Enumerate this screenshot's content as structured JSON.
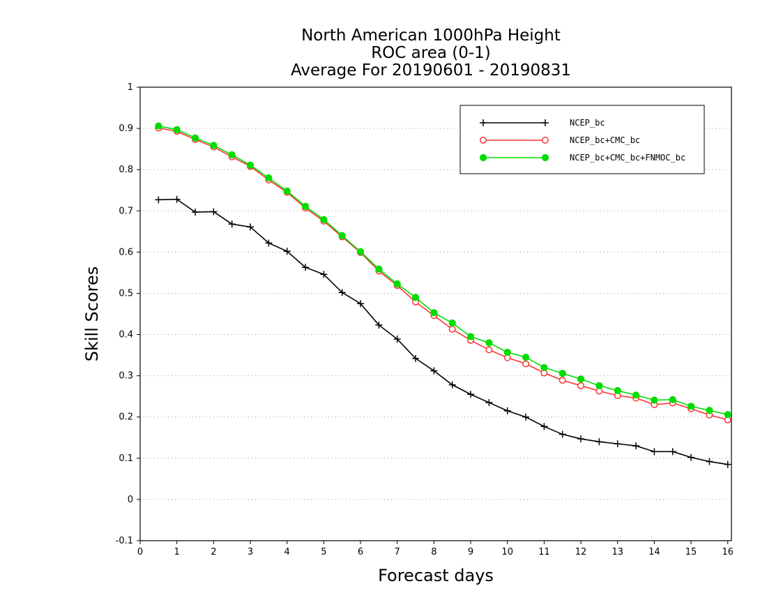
{
  "chart_data": {
    "type": "line",
    "title_lines": [
      "North American 1000hPa Height",
      "ROC area (0-1)",
      "Average For 20190601 - 20190831"
    ],
    "xlabel": "Forecast days",
    "ylabel": "Skill Scores",
    "xlim": [
      0,
      16.1
    ],
    "ylim": [
      -0.1,
      1
    ],
    "x_ticks": [
      0,
      1,
      2,
      3,
      4,
      5,
      6,
      7,
      8,
      9,
      10,
      11,
      12,
      13,
      14,
      15,
      16
    ],
    "x_tick_labels": [
      "0",
      "1",
      "2",
      "3",
      "4",
      "5",
      "6",
      "7",
      "8",
      "9",
      "10",
      "11",
      "12",
      "13",
      "14",
      "15",
      "16"
    ],
    "y_ticks": [
      -0.1,
      0,
      0.1,
      0.2,
      0.3,
      0.4,
      0.5,
      0.6,
      0.7,
      0.8,
      0.9,
      1
    ],
    "y_tick_labels": [
      "-0.1",
      "0",
      "0.1",
      "0.2",
      "0.3",
      "0.4",
      "0.5",
      "0.6",
      "0.7",
      "0.8",
      "0.9",
      "1"
    ],
    "grid": "horizontal dotted",
    "legend_position": "top-right",
    "x": [
      0.5,
      1.0,
      1.5,
      2.0,
      2.5,
      3.0,
      3.5,
      4.0,
      4.5,
      5.0,
      5.5,
      6.0,
      6.5,
      7.0,
      7.5,
      8.0,
      8.5,
      9.0,
      9.5,
      10.0,
      10.5,
      11.0,
      11.5,
      12.0,
      12.5,
      13.0,
      13.5,
      14.0,
      14.5,
      15.0,
      15.5,
      16.0
    ],
    "series": [
      {
        "name": "NCEP_bc",
        "color": "#000000",
        "marker": "plus",
        "values": [
          0.727,
          0.728,
          0.697,
          0.698,
          0.668,
          0.661,
          0.622,
          0.602,
          0.563,
          0.546,
          0.502,
          0.475,
          0.423,
          0.389,
          0.342,
          0.312,
          0.278,
          0.255,
          0.235,
          0.215,
          0.2,
          0.177,
          0.158,
          0.147,
          0.14,
          0.135,
          0.13,
          0.116,
          0.116,
          0.102,
          0.092,
          0.085
        ]
      },
      {
        "name": "NCEP_bc+CMC_bc",
        "color": "#ff3333",
        "marker": "open-circle",
        "values": [
          0.901,
          0.893,
          0.873,
          0.855,
          0.831,
          0.808,
          0.775,
          0.745,
          0.707,
          0.675,
          0.637,
          0.599,
          0.554,
          0.519,
          0.479,
          0.446,
          0.413,
          0.386,
          0.363,
          0.344,
          0.329,
          0.307,
          0.289,
          0.276,
          0.263,
          0.252,
          0.246,
          0.23,
          0.234,
          0.22,
          0.205,
          0.193
        ]
      },
      {
        "name": "NCEP_bc+CMC_bc+FNMOC_bc",
        "color": "#00dd00",
        "marker": "filled-circle",
        "values": [
          0.906,
          0.897,
          0.877,
          0.859,
          0.836,
          0.811,
          0.78,
          0.748,
          0.711,
          0.679,
          0.64,
          0.601,
          0.559,
          0.523,
          0.49,
          0.453,
          0.428,
          0.395,
          0.38,
          0.357,
          0.345,
          0.32,
          0.306,
          0.292,
          0.276,
          0.264,
          0.253,
          0.241,
          0.242,
          0.226,
          0.216,
          0.206
        ]
      }
    ]
  }
}
